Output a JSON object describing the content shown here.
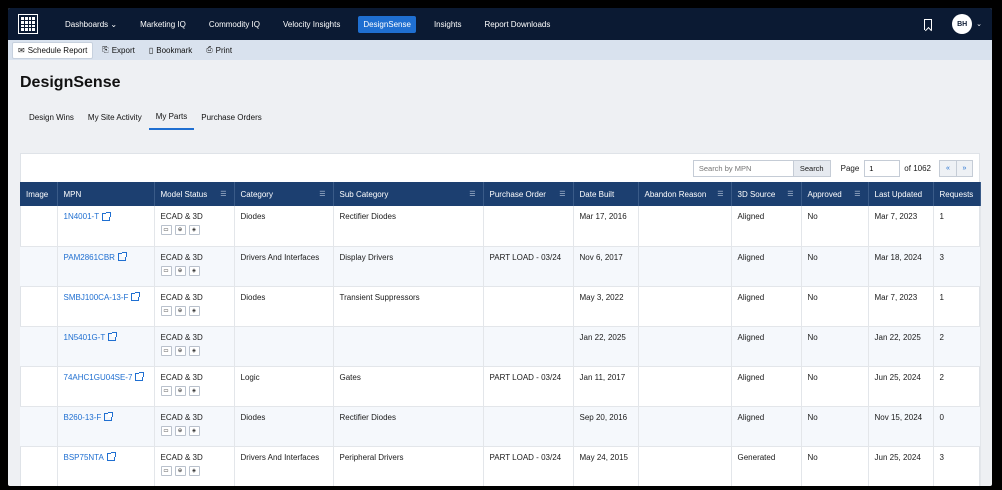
{
  "nav": {
    "items": [
      {
        "label": "Dashboards ⌄",
        "active": false
      },
      {
        "label": "Marketing IQ",
        "active": false
      },
      {
        "label": "Commodity IQ",
        "active": false
      },
      {
        "label": "Velocity Insights",
        "active": false
      },
      {
        "label": "DesignSense",
        "active": true
      },
      {
        "label": "Insights",
        "active": false
      },
      {
        "label": "Report Downloads",
        "active": false
      }
    ],
    "avatar": "BH"
  },
  "toolbar": {
    "schedule": "Schedule Report",
    "export": "Export",
    "bookmark": "Bookmark",
    "print": "Print"
  },
  "page": {
    "title": "DesignSense"
  },
  "tabs": [
    "Design Wins",
    "My Site Activity",
    "My Parts",
    "Purchase Orders"
  ],
  "search": {
    "placeholder": "Search by MPN",
    "button": "Search"
  },
  "pager": {
    "page_label": "Page",
    "page_value": "1",
    "of_label": "of 1062",
    "prev": "«",
    "next": "»"
  },
  "table": {
    "columns": [
      "Image",
      "MPN",
      "Model Status",
      "Category",
      "Sub Category",
      "Purchase Order",
      "Date Built",
      "Abandon Reason",
      "3D Source",
      "Approved",
      "Last Updated",
      "Requests"
    ],
    "rows": [
      {
        "mpn": "1N4001-T",
        "status": "ECAD & 3D",
        "category": "Diodes",
        "sub": "Rectifier Diodes",
        "po": "",
        "built": "Mar 17, 2016",
        "abandon": "",
        "source": "Aligned",
        "approved": "No",
        "updated": "Mar 7, 2023",
        "requests": "1"
      },
      {
        "mpn": "PAM2861CBR",
        "status": "ECAD & 3D",
        "category": "Drivers And Interfaces",
        "sub": "Display Drivers",
        "po": "PART LOAD - 03/24",
        "built": "Nov 6, 2017",
        "abandon": "",
        "source": "Aligned",
        "approved": "No",
        "updated": "Mar 18, 2024",
        "requests": "3"
      },
      {
        "mpn": "SMBJ100CA-13-F",
        "status": "ECAD & 3D",
        "category": "Diodes",
        "sub": "Transient Suppressors",
        "po": "",
        "built": "May 3, 2022",
        "abandon": "",
        "source": "Aligned",
        "approved": "No",
        "updated": "Mar 7, 2023",
        "requests": "1"
      },
      {
        "mpn": "1N5401G-T",
        "status": "ECAD & 3D",
        "category": "",
        "sub": "",
        "po": "",
        "built": "Jan 22, 2025",
        "abandon": "",
        "source": "Aligned",
        "approved": "No",
        "updated": "Jan 22, 2025",
        "requests": "2"
      },
      {
        "mpn": "74AHC1GU04SE-7",
        "status": "ECAD & 3D",
        "category": "Logic",
        "sub": "Gates",
        "po": "PART LOAD - 03/24",
        "built": "Jan 11, 2017",
        "abandon": "",
        "source": "Aligned",
        "approved": "No",
        "updated": "Jun 25, 2024",
        "requests": "2"
      },
      {
        "mpn": "B260-13-F",
        "status": "ECAD & 3D",
        "category": "Diodes",
        "sub": "Rectifier Diodes",
        "po": "",
        "built": "Sep 20, 2016",
        "abandon": "",
        "source": "Aligned",
        "approved": "No",
        "updated": "Nov 15, 2024",
        "requests": "0"
      },
      {
        "mpn": "BSP75NTA",
        "status": "ECAD & 3D",
        "category": "Drivers And Interfaces",
        "sub": "Peripheral Drivers",
        "po": "PART LOAD - 03/24",
        "built": "May 24, 2015",
        "abandon": "",
        "source": "Generated",
        "approved": "No",
        "updated": "Jun 25, 2024",
        "requests": "3"
      }
    ]
  },
  "colors": {
    "nav_bg": "#0b1a33",
    "accent": "#1f6fd1",
    "header_bg": "#1c3f70"
  }
}
